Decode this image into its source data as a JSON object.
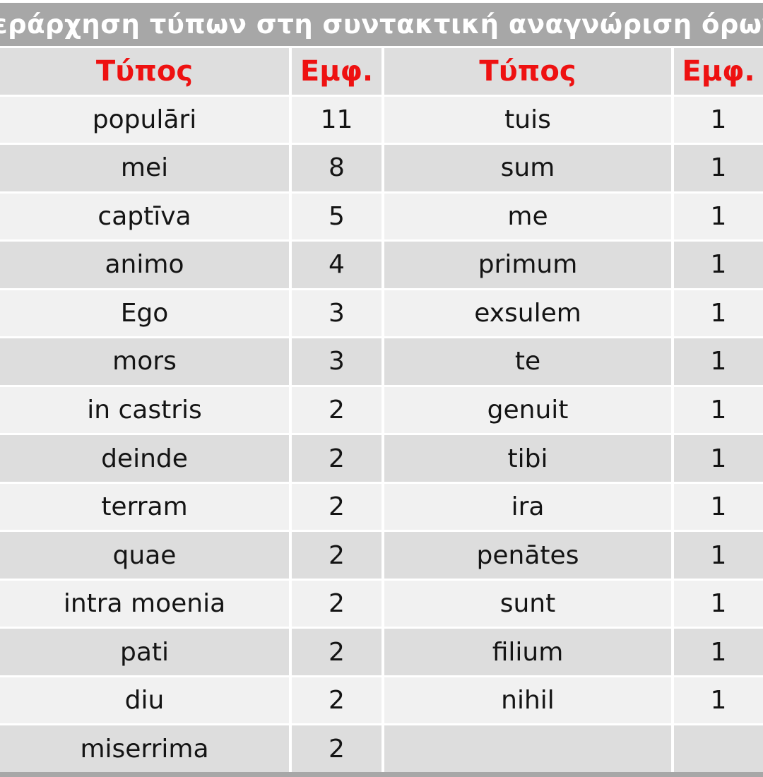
{
  "title": "Ιεράρχηση τύπων στη συντακτική αναγνώριση όρων",
  "colors": {
    "title_bg": "#a7a7a7",
    "title_text": "#ffffff",
    "header_text": "#ee1111",
    "header_bg": "#dedede",
    "row_light": "#f1f1f1",
    "row_dark": "#dddddd",
    "cell_text": "#141414"
  },
  "chart_data": {
    "type": "table",
    "title": "Ιεράρχηση τύπων στη συντακτική αναγνώριση όρων",
    "columns": [
      "Τύπος",
      "Εμφ.",
      "Τύπος",
      "Εμφ."
    ],
    "rows": [
      [
        "populāri",
        "11",
        "tuis",
        "1"
      ],
      [
        "mei",
        "8",
        "sum",
        "1"
      ],
      [
        "captīva",
        "5",
        "me",
        "1"
      ],
      [
        "animo",
        "4",
        "primum",
        "1"
      ],
      [
        "Ego",
        "3",
        "exsulem",
        "1"
      ],
      [
        "mors",
        "3",
        "te",
        "1"
      ],
      [
        "in castris",
        "2",
        "genuit",
        "1"
      ],
      [
        "deinde",
        "2",
        "tibi",
        "1"
      ],
      [
        "terram",
        "2",
        "ira",
        "1"
      ],
      [
        "quae",
        "2",
        "penātes",
        "1"
      ],
      [
        "intra moenia",
        "2",
        "sunt",
        "1"
      ],
      [
        "pati",
        "2",
        "filium",
        "1"
      ],
      [
        "diu",
        "2",
        "nihil",
        "1"
      ],
      [
        "miserrima",
        "2",
        "",
        ""
      ]
    ]
  }
}
